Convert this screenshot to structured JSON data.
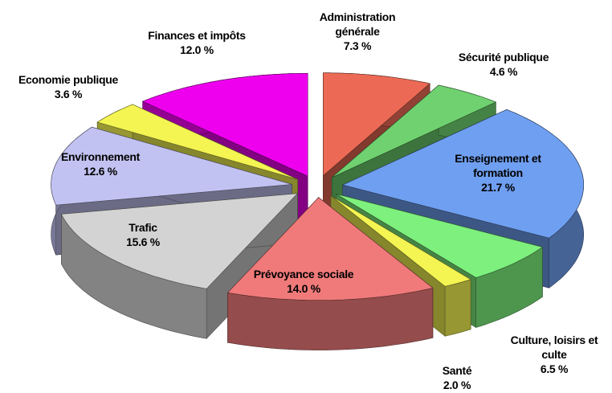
{
  "chart_data": {
    "type": "pie3d",
    "categories": [
      "Administration générale",
      "Sécurité publique",
      "Enseignement et formation",
      "Culture, loisirs et culte",
      "Santé",
      "Prévoyance sociale",
      "Trafic",
      "Environnement",
      "Economie publique",
      "Finances et impôts"
    ],
    "values": [
      7.3,
      4.6,
      21.7,
      6.5,
      2.0,
      14.0,
      15.6,
      12.6,
      3.6,
      12.0
    ],
    "value_labels": [
      "7.3 %",
      "4.6 %",
      "21.7 %",
      "6.5 %",
      "2.0 %",
      "14.0 %",
      "15.6 %",
      "12.6 %",
      "3.6 %",
      "12.0 %"
    ],
    "colors": [
      "#ec6a55",
      "#6fd16f",
      "#6f9ff0",
      "#7df07d",
      "#f4f452",
      "#f07a7a",
      "#d3d3d3",
      "#c2c2f2",
      "#f4f452",
      "#ee00ee"
    ]
  }
}
